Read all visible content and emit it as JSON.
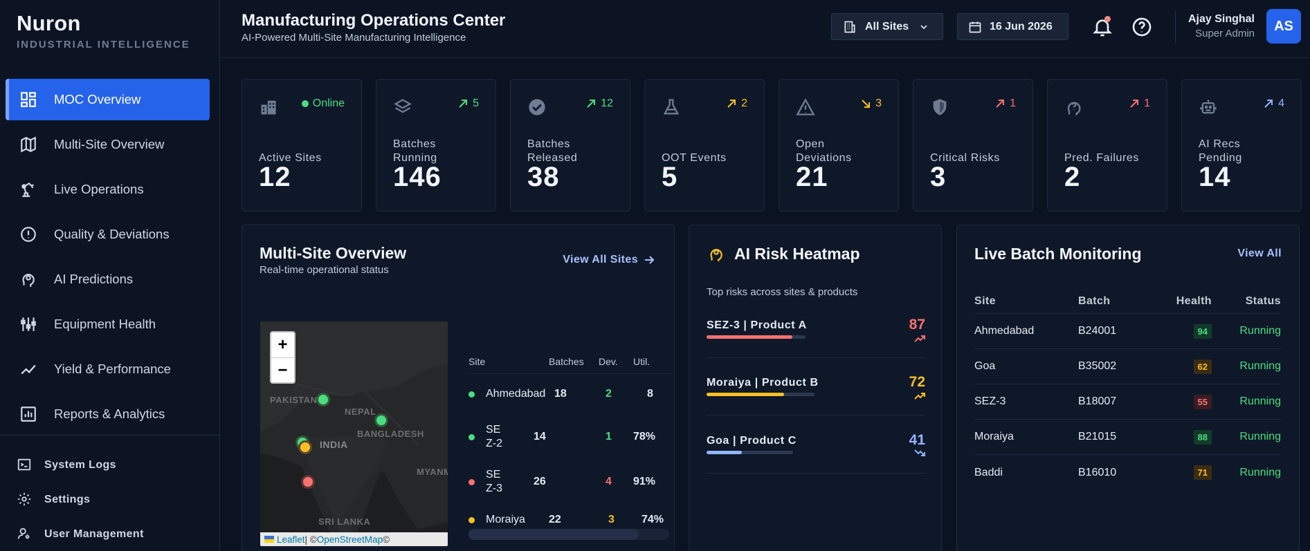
{
  "brand": {
    "name": "Nuron",
    "tagline": "INDUSTRIAL INTELLIGENCE"
  },
  "sidebar": {
    "items": [
      {
        "label": "MOC Overview",
        "icon": "dashboard-icon",
        "active": true
      },
      {
        "label": "Multi-Site Overview",
        "icon": "map-icon"
      },
      {
        "label": "Live Operations",
        "icon": "robot-arm-icon"
      },
      {
        "label": "Quality & Deviations",
        "icon": "alert-circle-icon"
      },
      {
        "label": "AI Predictions",
        "icon": "brain-icon"
      },
      {
        "label": "Equipment Health",
        "icon": "sliders-icon"
      },
      {
        "label": "Yield & Performance",
        "icon": "trend-icon"
      },
      {
        "label": "Reports & Analytics",
        "icon": "report-icon"
      }
    ],
    "system": [
      {
        "label": "System Logs",
        "icon": "terminal-icon"
      },
      {
        "label": "Settings",
        "icon": "gear-icon"
      },
      {
        "label": "User Management",
        "icon": "user-gear-icon"
      }
    ]
  },
  "header": {
    "title": "Manufacturing Operations Center",
    "subtitle": "AI-Powered Multi-Site Manufacturing Intelligence",
    "site_select": "All Sites",
    "date": "16 Jun 2026",
    "user": {
      "name": "Ajay Singhal",
      "role": "Super Admin",
      "initials": "AS"
    }
  },
  "kpis": [
    {
      "label": "Active Sites",
      "value": "12",
      "badge": "Online",
      "badge_type": "status",
      "color": "#4ade80"
    },
    {
      "label": "Batches Running",
      "value": "146",
      "badge": "5",
      "badge_type": "up",
      "color": "#4ade80"
    },
    {
      "label": "Batches Released",
      "value": "38",
      "badge": "12",
      "badge_type": "up",
      "color": "#4ade80"
    },
    {
      "label": "OOT Events",
      "value": "5",
      "badge": "2",
      "badge_type": "up",
      "color": "#fbbf24"
    },
    {
      "label": "Open Deviations",
      "value": "21",
      "badge": "3",
      "badge_type": "down",
      "color": "#fbbf24"
    },
    {
      "label": "Critical Risks",
      "value": "3",
      "badge": "1",
      "badge_type": "up",
      "color": "#f87171"
    },
    {
      "label": "Pred. Failures",
      "value": "2",
      "badge": "1",
      "badge_type": "up",
      "color": "#f87171"
    },
    {
      "label": "AI Recs Pending",
      "value": "14",
      "badge": "4",
      "badge_type": "up",
      "color": "#93b4ff"
    }
  ],
  "multisite": {
    "title": "Multi-Site Overview",
    "subtitle": "Real-time operational status",
    "link": "View All Sites",
    "map": {
      "labels": [
        "PAKISTAN",
        "NEPAL",
        "BANGLADESH",
        "INDIA",
        "MYANMAR",
        "SRI LANKA"
      ],
      "attribution": {
        "leaflet": "Leaflet",
        "sep": " | © ",
        "osm": "OpenStreetMap",
        "tail": " ©"
      }
    },
    "columns": [
      "Site",
      "Batches",
      "Dev.",
      "Util."
    ],
    "rows": [
      {
        "site": "Ahmedabad",
        "batches": "18",
        "dev": "2",
        "util": "8",
        "color": "#4ade80"
      },
      {
        "site": "SEZ-2",
        "batches": "14",
        "dev": "1",
        "util": "78%",
        "color": "#4ade80"
      },
      {
        "site": "SEZ-3",
        "batches": "26",
        "dev": "4",
        "util": "91%",
        "color": "#f87171"
      },
      {
        "site": "Moraiya",
        "batches": "22",
        "dev": "3",
        "util": "74%",
        "color": "#fbbf24"
      }
    ]
  },
  "heatmap": {
    "title": "AI Risk Heatmap",
    "subtitle": "Top risks across sites & products",
    "items": [
      {
        "name": "SEZ-3 | Product A",
        "value": "87",
        "level": 0.87,
        "color": "#f87171",
        "trend": "up"
      },
      {
        "name": "Moraiya | Product B",
        "value": "72",
        "level": 0.72,
        "color": "#fbbf24",
        "trend": "up"
      },
      {
        "name": "Goa | Product C",
        "value": "41",
        "level": 0.41,
        "color": "#93b4ff",
        "trend": "down"
      }
    ]
  },
  "batches": {
    "title": "Live Batch Monitoring",
    "link": "View All",
    "columns": [
      "Site",
      "Batch",
      "Health",
      "Status"
    ],
    "rows": [
      {
        "site": "Ahmedabad",
        "batch": "B24001",
        "health": "94",
        "status": "Running",
        "color": "#4ade80",
        "bg": "#123a2a"
      },
      {
        "site": "Goa",
        "batch": "B35002",
        "health": "62",
        "status": "Running",
        "color": "#fbbf24",
        "bg": "#3a2c14"
      },
      {
        "site": "SEZ-3",
        "batch": "B18007",
        "health": "55",
        "status": "Running",
        "color": "#f87171",
        "bg": "#3a1c22"
      },
      {
        "site": "Moraiya",
        "batch": "B21015",
        "health": "88",
        "status": "Running",
        "color": "#4ade80",
        "bg": "#123a2a"
      },
      {
        "site": "Baddi",
        "batch": "B16010",
        "health": "71",
        "status": "Running",
        "color": "#fbbf24",
        "bg": "#3a2c14"
      }
    ]
  }
}
